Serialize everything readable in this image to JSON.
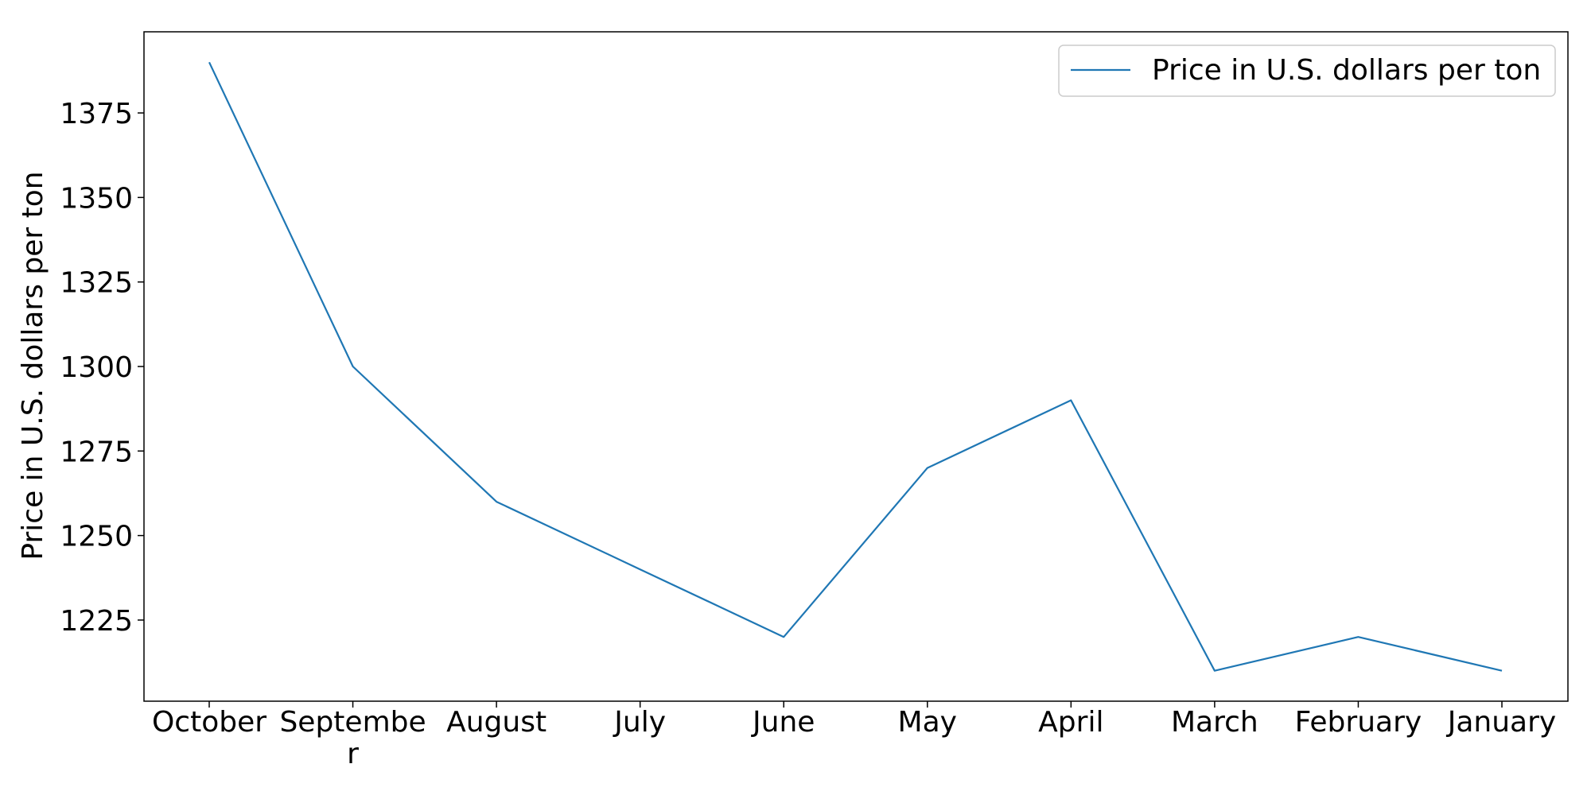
{
  "chart_data": {
    "type": "line",
    "title": "",
    "xlabel": "",
    "ylabel": "Price in U.S. dollars per ton",
    "categories": [
      "October",
      "Septembe\nr",
      "August",
      "July",
      "June",
      "May",
      "April",
      "March",
      "February",
      "January"
    ],
    "series": [
      {
        "name": "Price in U.S. dollars per ton",
        "values": [
          1390,
          1300,
          1260,
          1240,
          1220,
          1270,
          1290,
          1210,
          1220,
          1210
        ],
        "color": "#1f77b4"
      }
    ],
    "ylim": [
      1201,
      1399
    ],
    "yticks": [
      1225,
      1250,
      1275,
      1300,
      1325,
      1350,
      1375
    ],
    "grid": false,
    "legend_position": "top-right"
  }
}
